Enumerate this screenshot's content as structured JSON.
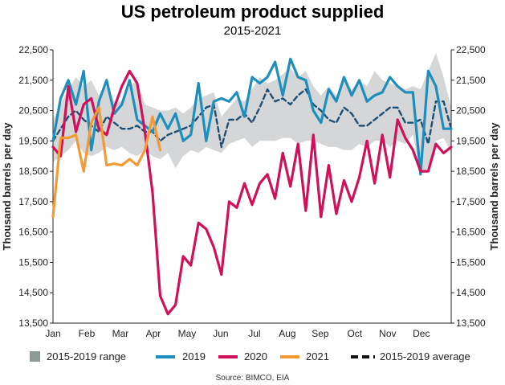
{
  "chart_data": {
    "type": "line",
    "title": "US petroleum product supplied",
    "subtitle": "2015-2021",
    "ylabel": "Thousand barrels per day",
    "ylabel_right": "Thousand barrels per day",
    "source": "Source: BIMCO, EIA",
    "ylim": [
      13500,
      22500
    ],
    "yticks": [
      "13,500",
      "14,500",
      "15,500",
      "16,500",
      "17,500",
      "18,500",
      "19,500",
      "20,500",
      "21,500",
      "22,500"
    ],
    "ytick_values": [
      13500,
      14500,
      15500,
      16500,
      17500,
      18500,
      19500,
      20500,
      21500,
      22500
    ],
    "xlim": [
      1,
      53
    ],
    "x_axis_unit": "week of year",
    "month_labels": [
      "Jan",
      "Feb",
      "Mar",
      "Apr",
      "May",
      "Jun",
      "Jul",
      "Aug",
      "Sep",
      "Oct",
      "Nov",
      "Dec"
    ],
    "month_positions": [
      1,
      5.4,
      9.8,
      14.1,
      18.5,
      22.9,
      27.3,
      31.6,
      35.9,
      40.4,
      44.7,
      49.1
    ],
    "grid": false,
    "legend_position": "bottom",
    "colors": {
      "range": "#d4d6d7",
      "range_swatch": "#8e9a97",
      "s2019": "#1e8fbd",
      "s2020": "#d0105a",
      "s2021": "#f39a35",
      "avg": "#1d4f75"
    },
    "legend": {
      "range": "2015-2019 range",
      "s2019": "2019",
      "s2020": "2020",
      "s2021": "2021",
      "avg": "2015-2019 average"
    },
    "range": {
      "weeks": [
        1,
        2,
        3,
        4,
        5,
        6,
        7,
        8,
        9,
        10,
        11,
        12,
        13,
        14,
        15,
        16,
        17,
        18,
        19,
        20,
        21,
        22,
        23,
        24,
        25,
        26,
        27,
        28,
        29,
        30,
        31,
        32,
        33,
        34,
        35,
        36,
        37,
        38,
        39,
        40,
        41,
        42,
        43,
        44,
        45,
        46,
        47,
        48,
        49,
        50,
        51,
        52,
        53
      ],
      "low": [
        18800,
        19000,
        19200,
        19500,
        19100,
        19000,
        19100,
        19300,
        19200,
        19300,
        19100,
        19000,
        19200,
        19000,
        18900,
        19100,
        18600,
        19000,
        19200,
        19100,
        19300,
        19200,
        19100,
        19400,
        19500,
        19600,
        19300,
        19500,
        19500,
        19500,
        19600,
        19600,
        19400,
        19500,
        19500,
        19400,
        19300,
        19300,
        19200,
        19200,
        19400,
        19300,
        19500,
        19500,
        19300,
        19500,
        19400,
        19700,
        18400,
        18600,
        19500,
        19600,
        19100
      ],
      "high": [
        20200,
        20700,
        21200,
        21600,
        21300,
        21500,
        21000,
        21300,
        20800,
        20800,
        21300,
        21500,
        20700,
        20600,
        20500,
        20500,
        20600,
        20400,
        20600,
        20900,
        21000,
        21100,
        20300,
        20600,
        20900,
        20800,
        21200,
        21600,
        21400,
        21500,
        21700,
        21900,
        21600,
        21800,
        21300,
        21000,
        21300,
        21000,
        21500,
        21200,
        21500,
        21300,
        21800,
        21500,
        21400,
        21300,
        21200,
        21300,
        21200,
        21800,
        22400,
        21600,
        20600
      ]
    },
    "series": [
      {
        "name": "2019",
        "weeks": [
          1,
          2,
          3,
          4,
          5,
          6,
          7,
          8,
          9,
          10,
          11,
          12,
          13,
          14,
          15,
          16,
          17,
          18,
          19,
          20,
          21,
          22,
          23,
          24,
          25,
          26,
          27,
          28,
          29,
          30,
          31,
          32,
          33,
          34,
          35,
          36,
          37,
          38,
          39,
          40,
          41,
          42,
          43,
          44,
          45,
          46,
          47,
          48,
          49,
          50,
          51,
          52,
          53
        ],
        "values": [
          19500,
          20900,
          21500,
          20700,
          21800,
          19200,
          20800,
          21500,
          20400,
          20700,
          21500,
          20200,
          20000,
          19800,
          20400,
          19900,
          20400,
          19500,
          19700,
          21400,
          19500,
          20800,
          20900,
          20800,
          21100,
          20300,
          21600,
          21400,
          21600,
          22100,
          21000,
          22200,
          21600,
          21500,
          20500,
          20100,
          21200,
          20800,
          21600,
          21000,
          21500,
          20800,
          21000,
          21100,
          21600,
          21300,
          21100,
          21100,
          18400,
          21800,
          21300,
          19900,
          19900
        ]
      },
      {
        "name": "2020",
        "weeks": [
          1,
          2,
          3,
          4,
          5,
          6,
          7,
          8,
          9,
          10,
          11,
          12,
          13,
          14,
          15,
          16,
          17,
          18,
          19,
          20,
          21,
          22,
          23,
          24,
          25,
          26,
          27,
          28,
          29,
          30,
          31,
          32,
          33,
          34,
          35,
          36,
          37,
          38,
          39,
          40,
          41,
          42,
          43,
          44,
          45,
          46,
          47,
          48,
          49,
          50,
          51,
          52,
          53
        ],
        "values": [
          19300,
          19000,
          21300,
          19800,
          20700,
          20900,
          19900,
          19700,
          20600,
          21300,
          21800,
          21400,
          19800,
          17800,
          14400,
          13800,
          14100,
          15700,
          15400,
          16800,
          16600,
          16000,
          15100,
          17500,
          17300,
          18100,
          17400,
          18100,
          18400,
          17600,
          19100,
          18000,
          19400,
          17200,
          19700,
          17000,
          18700,
          17100,
          18200,
          17500,
          18300,
          19500,
          18100,
          19700,
          18300,
          20200,
          19600,
          19200,
          18500,
          18500,
          19400,
          19100,
          19300
        ]
      },
      {
        "name": "2021",
        "weeks": [
          1,
          2,
          3,
          4,
          5,
          6,
          7,
          8,
          9,
          10,
          11,
          12,
          13,
          14,
          15
        ],
        "values": [
          17000,
          19600,
          19600,
          19700,
          18500,
          20100,
          20600,
          18700,
          18750,
          18700,
          18900,
          18700,
          19200,
          20300,
          19200
        ]
      },
      {
        "name": "2015-2019 average",
        "weeks": [
          1,
          2,
          3,
          4,
          5,
          6,
          7,
          8,
          9,
          10,
          11,
          12,
          13,
          14,
          15,
          16,
          17,
          18,
          19,
          20,
          21,
          22,
          23,
          24,
          25,
          26,
          27,
          28,
          29,
          30,
          31,
          32,
          33,
          34,
          35,
          36,
          37,
          38,
          39,
          40,
          41,
          42,
          43,
          44,
          45,
          46,
          47,
          48,
          49,
          50,
          51,
          52,
          53
        ],
        "values": [
          19500,
          19900,
          20300,
          20500,
          20200,
          20000,
          19800,
          20300,
          20100,
          19900,
          19900,
          20000,
          19800,
          19800,
          19500,
          19700,
          19800,
          19900,
          20000,
          20300,
          20600,
          20700,
          19300,
          20200,
          20200,
          20400,
          20100,
          20600,
          21200,
          20800,
          20900,
          20700,
          21000,
          21200,
          20700,
          20500,
          20200,
          20100,
          20600,
          20400,
          20000,
          20000,
          20200,
          20400,
          20600,
          20600,
          20100,
          20100,
          20200,
          19400,
          20800,
          20800,
          19900
        ]
      }
    ]
  }
}
